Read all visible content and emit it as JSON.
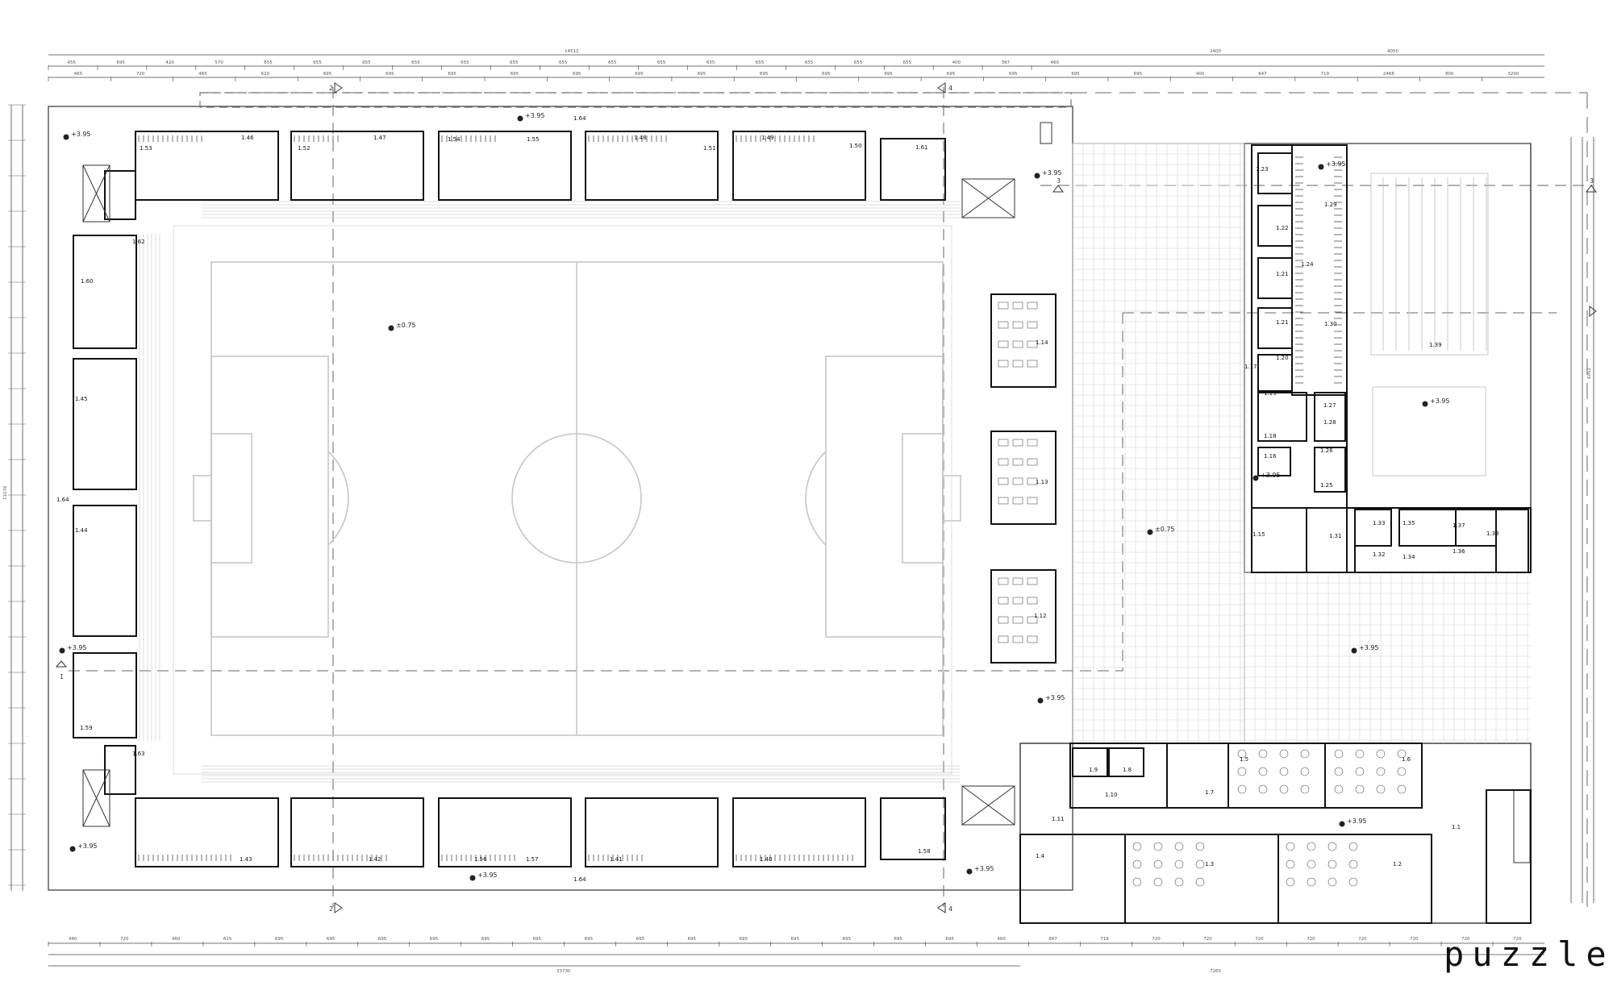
{
  "brand": "puzzle",
  "levels": {
    "ref_field": "±0.75",
    "ref_ext": "+3.95",
    "ref_court": "+3.95",
    "ref_yard": "+3.95",
    "ref_low": "±0.75"
  },
  "axes": {
    "a2": "2",
    "a3": "3",
    "a4": "4",
    "a1": "1"
  },
  "dims_top_total": "14512",
  "dims_top_right_a": "2400",
  "dims_top_right_b": "4050",
  "dims_bottom_total": "33730",
  "dims_bottom_right": "7265",
  "dims_left_total": "11076",
  "dims_right_total": "6052",
  "dims_top_row1": [
    "455",
    "695",
    "420",
    "570",
    "655",
    "655",
    "655",
    "655",
    "655",
    "655",
    "655",
    "655",
    "655",
    "655",
    "655",
    "655",
    "655",
    "655",
    "400",
    "397",
    "460"
  ],
  "dims_top_row2": [
    "465",
    "720",
    "465",
    "620",
    "695",
    "695",
    "695",
    "695",
    "695",
    "695",
    "695",
    "695",
    "695",
    "695",
    "695",
    "695",
    "695",
    "695",
    "400",
    "647",
    "719",
    "2468",
    "800",
    "3200"
  ],
  "dims_bottom_row1": [
    "440",
    "720",
    "460",
    "615",
    "695",
    "695",
    "695",
    "695",
    "695",
    "695",
    "695",
    "695",
    "695",
    "695",
    "695",
    "695",
    "695",
    "695",
    "460",
    "647",
    "719",
    "720",
    "720",
    "720",
    "720",
    "720",
    "720",
    "720",
    "720"
  ],
  "rooms_stands_top": [
    "1.53",
    "1.46",
    "1.52",
    "1.47",
    "1.54",
    "1.55",
    "1.48",
    "1.51",
    "1.49",
    "1.50",
    "1.61"
  ],
  "rooms_stands_bottom": [
    "1.43",
    "1.42",
    "1.56",
    "1.57",
    "1.41",
    "1.40",
    "1.58"
  ],
  "rooms_left": [
    "1.62",
    "1.60",
    "1.45",
    "1.64",
    "1.44",
    "1.59",
    "1.63"
  ],
  "room_164_top": "1.64",
  "room_164_bottom": "1.64",
  "rooms_mid": [
    "1.14",
    "1.13",
    "1.12"
  ],
  "rooms_right_block": [
    "1.23",
    "1.22",
    "1.21",
    "1.21",
    "1.20",
    "1.17",
    "1.19",
    "1.18",
    "1.16",
    "1.15",
    "1.29",
    "1.24",
    "1.30",
    "1.27",
    "1.28",
    "1.26",
    "1.25",
    "1.39"
  ],
  "rooms_right_lower": [
    "1.31",
    "1.33",
    "1.32",
    "1.35",
    "1.34",
    "1.37",
    "1.36",
    "1.38"
  ],
  "rooms_bottom_block": [
    "1.9",
    "1.8",
    "1.10",
    "1.7",
    "1.5",
    "1.6",
    "1.11",
    "1.4",
    "1.3",
    "1.2",
    "1.1"
  ]
}
